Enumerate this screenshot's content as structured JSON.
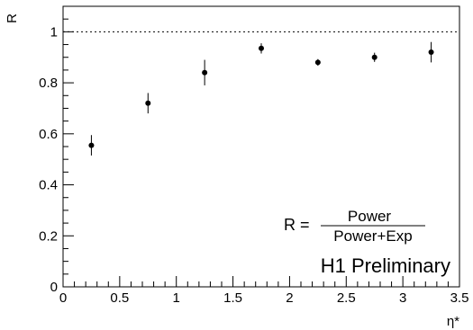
{
  "chart_data": {
    "type": "scatter",
    "xlabel": "η*",
    "ylabel": "R",
    "xlim": [
      0,
      3.5
    ],
    "ylim": [
      0,
      1.1
    ],
    "x_tick_labels": [
      "0",
      "0.5",
      "1",
      "1.5",
      "2",
      "2.5",
      "3",
      "3.5"
    ],
    "y_tick_labels": [
      "0",
      "0.2",
      "0.4",
      "0.6",
      "0.8",
      "1"
    ],
    "reference_line": {
      "y": 1.0,
      "style": "dotted"
    },
    "series": [
      {
        "points": [
          {
            "x": 0.25,
            "y": 0.555,
            "err": 0.04
          },
          {
            "x": 0.75,
            "y": 0.72,
            "err": 0.04
          },
          {
            "x": 1.25,
            "y": 0.84,
            "err": 0.05
          },
          {
            "x": 1.75,
            "y": 0.935,
            "err": 0.02
          },
          {
            "x": 2.25,
            "y": 0.88,
            "err": 0.013
          },
          {
            "x": 2.75,
            "y": 0.9,
            "err": 0.018
          },
          {
            "x": 3.25,
            "y": 0.92,
            "err": 0.04
          }
        ]
      }
    ],
    "formula": {
      "lhs": "R =",
      "numerator": "Power",
      "denominator": "Power+Exp"
    },
    "annotation": "H1 Preliminary"
  }
}
